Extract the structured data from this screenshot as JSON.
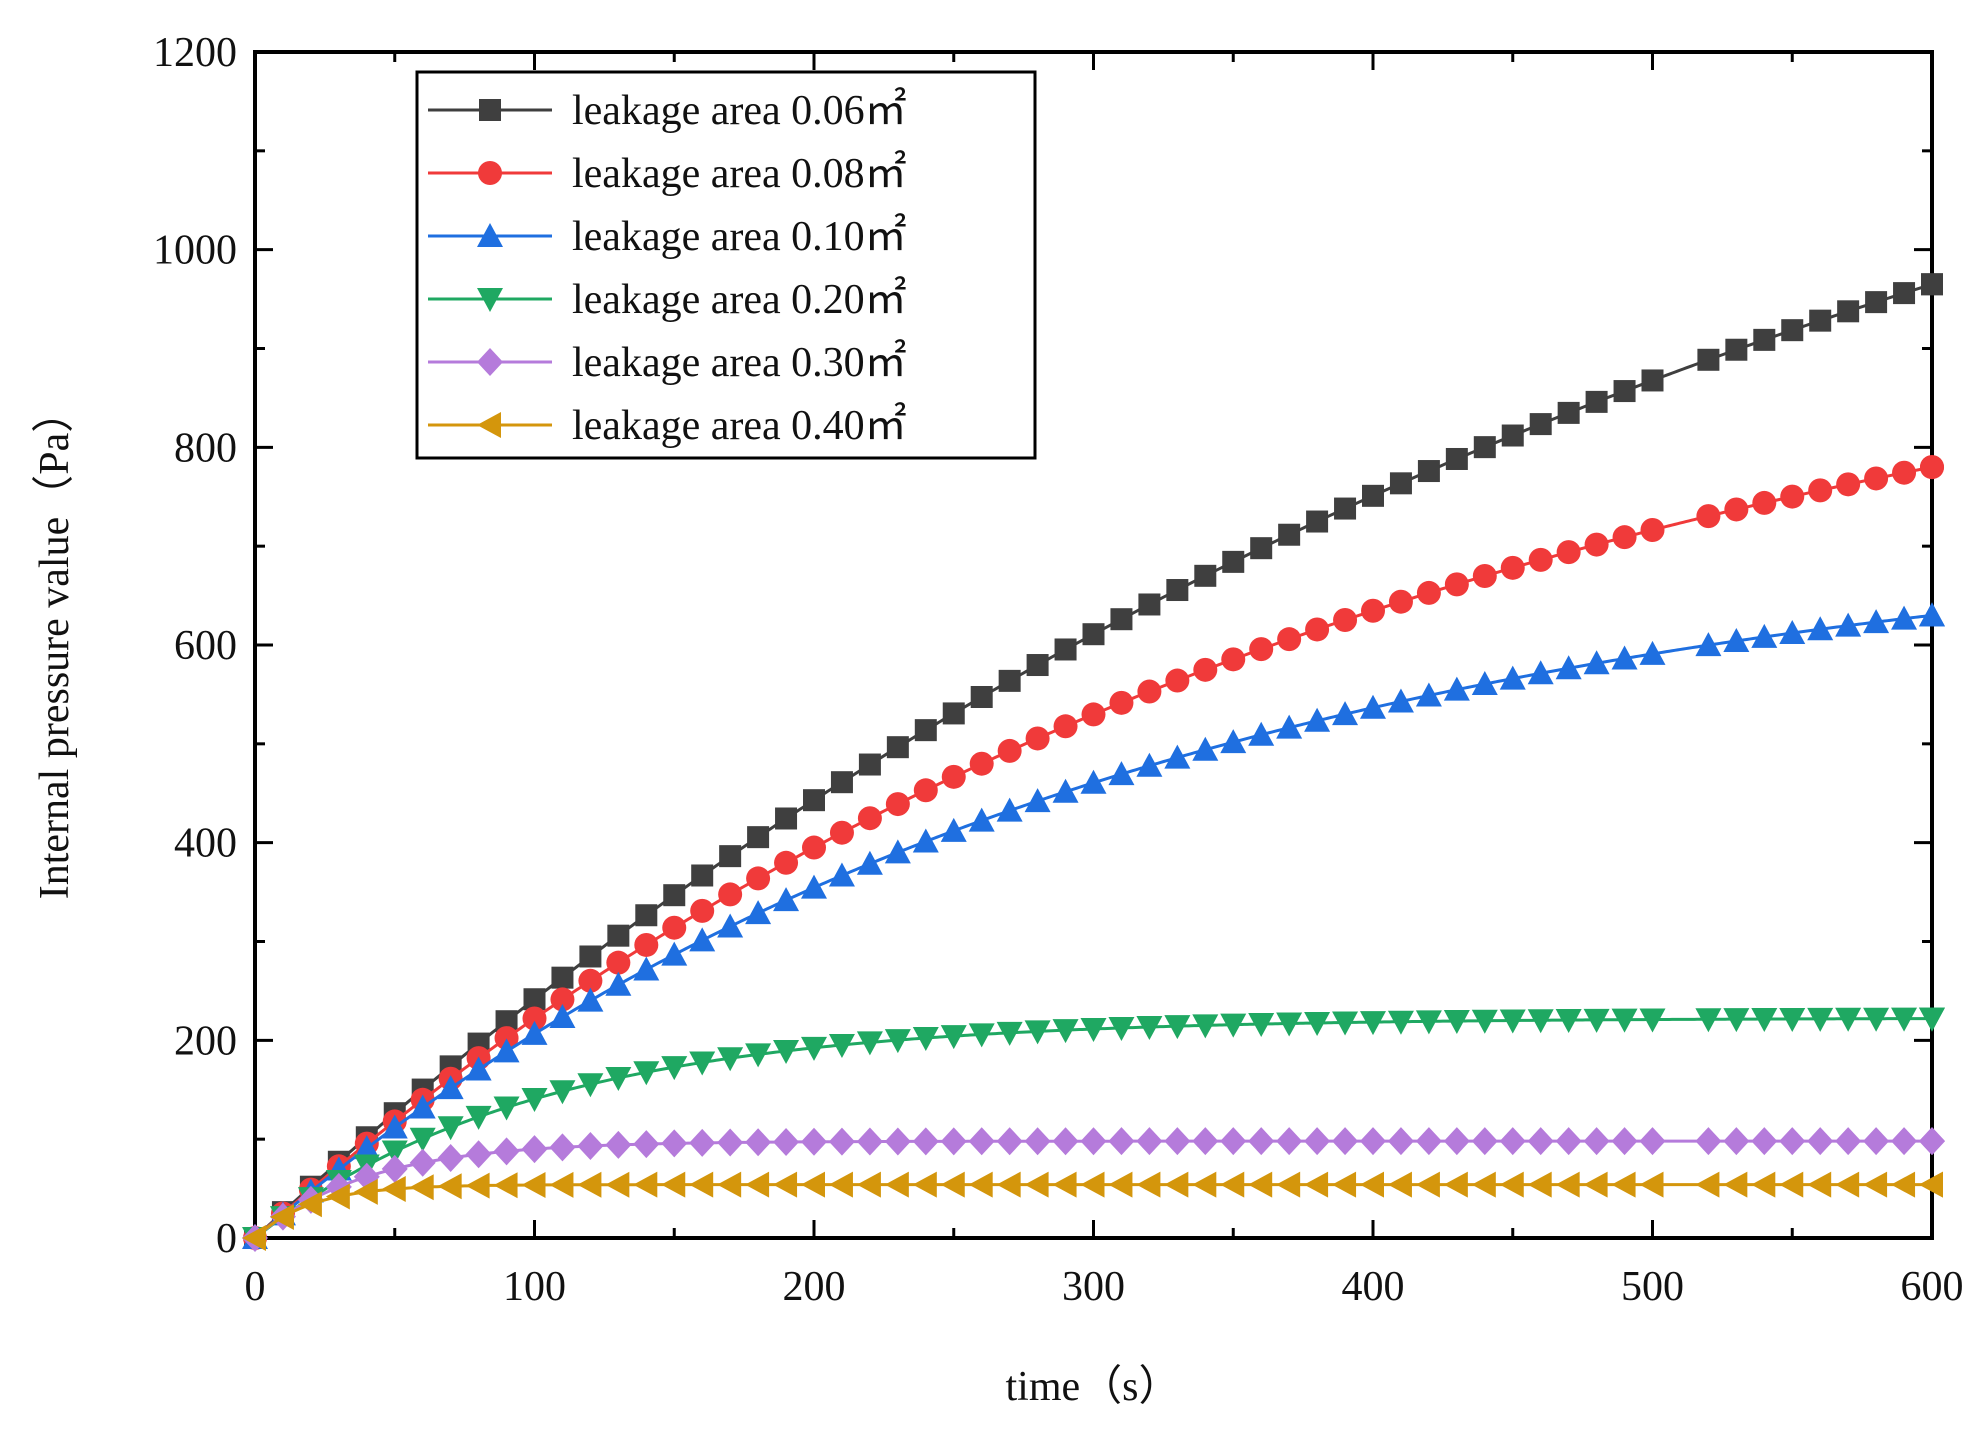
{
  "chart_data": {
    "type": "line",
    "title": "",
    "xlabel": "time（s）",
    "ylabel": "Internal pressure value（Pa）",
    "xlim": [
      0,
      600
    ],
    "ylim": [
      0,
      1200
    ],
    "x_ticks": [
      "0",
      "100",
      "200",
      "300",
      "400",
      "500",
      "600"
    ],
    "y_ticks": [
      "0",
      "200",
      "400",
      "600",
      "800",
      "1000",
      "1200"
    ],
    "grid": false,
    "legend_position": "top-left",
    "x_step": 10,
    "series": [
      {
        "name": "leakage area 0.06㎡",
        "color": "#3f3f3f",
        "marker": "square",
        "final": 965,
        "tau": 550
      },
      {
        "name": "leakage area 0.08㎡",
        "color": "#f03a3a",
        "marker": "circle",
        "final": 780,
        "tau": 400
      },
      {
        "name": "leakage area 0.10㎡",
        "color": "#1f6fe0",
        "marker": "triangle-up",
        "final": 630,
        "tau": 300
      },
      {
        "name": "leakage area 0.20㎡",
        "color": "#1fa862",
        "marker": "triangle-down",
        "final": 222,
        "tau": 100
      },
      {
        "name": "leakage area 0.30㎡",
        "color": "#b57bdb",
        "marker": "diamond",
        "final": 98,
        "tau": 40
      },
      {
        "name": "leakage area 0.40㎡",
        "color": "#d4960c",
        "marker": "triangle-left",
        "final": 54,
        "tau": 20
      }
    ]
  }
}
